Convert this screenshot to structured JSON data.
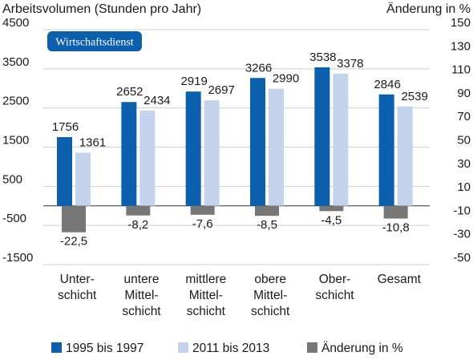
{
  "badge": "Wirtschaftsdienst",
  "colors": {
    "series_1995": "#0b5fad",
    "series_2011": "#c3d3ee",
    "change": "#777777",
    "badge_bg": "#0b5fad",
    "grid": "#cfcfcf"
  },
  "chart_data": {
    "type": "bar",
    "title_left": "Arbeitsvolumen (Stunden pro Jahr)",
    "title_right": "Änderung in %",
    "categories": [
      [
        "Unter-",
        "schicht"
      ],
      [
        "untere",
        "Mittel-",
        "schicht"
      ],
      [
        "mittlere",
        "Mittel-",
        "schicht"
      ],
      [
        "obere",
        "Mittel-",
        "schicht"
      ],
      [
        "Ober-",
        "schicht"
      ],
      [
        "Gesamt"
      ]
    ],
    "series": [
      {
        "name": "1995 bis 1997",
        "axis": "left",
        "values": [
          1756,
          2652,
          2919,
          3266,
          3538,
          2846
        ],
        "labels": [
          "1756",
          "2652",
          "2919",
          "3266",
          "3538",
          "2846"
        ]
      },
      {
        "name": "2011 bis 2013",
        "axis": "left",
        "values": [
          1361,
          2434,
          2697,
          2990,
          3378,
          2539
        ],
        "labels": [
          "1361",
          "2434",
          "2697",
          "2990",
          "3378",
          "2539"
        ]
      },
      {
        "name": "Änderung in %",
        "axis": "right",
        "values": [
          -22.5,
          -8.2,
          -7.6,
          -8.5,
          -4.5,
          -10.8
        ],
        "labels": [
          "-22,5",
          "-8,2",
          "-7,6",
          "-8,5",
          "-4,5",
          "-10,8"
        ]
      }
    ],
    "y_left": {
      "min": -1500,
      "max": 4500,
      "ticks": [
        4500,
        3500,
        2500,
        1500,
        500,
        -500,
        -1500
      ],
      "tick_labels": [
        "4500",
        "3500",
        "2500",
        "1500",
        "500",
        "-500",
        "-1500"
      ]
    },
    "y_right": {
      "min": -50,
      "max": 150,
      "ticks": [
        150,
        130,
        110,
        90,
        70,
        50,
        30,
        10,
        -10,
        -30,
        -50
      ],
      "tick_labels": [
        "150",
        "130",
        "110",
        "90",
        "70",
        "50",
        "30",
        "10",
        "-10",
        "-30",
        "-50"
      ]
    },
    "grid": true,
    "legend_position": "bottom"
  }
}
